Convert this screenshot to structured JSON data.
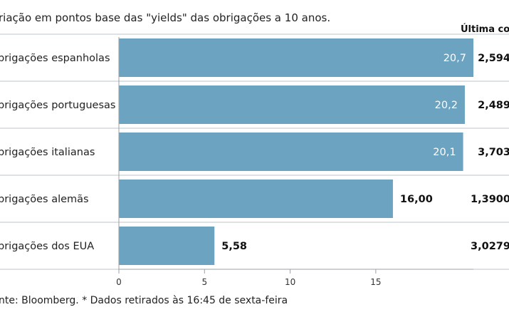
{
  "header": {
    "subtitle": "riação em pontos base das \"yields\" das obrigações a 10 anos.",
    "last_quote_label": "Última cotaç"
  },
  "footer": {
    "source": "nte: Bloomberg.  * Dados retirados às 16:45 de sexta-feira"
  },
  "colors": {
    "bar": "#6ca3c0",
    "axis": "#9aa0a6",
    "divider": "#bfc5ca"
  },
  "chart_data": {
    "type": "bar",
    "orientation": "horizontal",
    "categories": [
      "brigações espanholas",
      "brigações portuguesas",
      "brigações italianas",
      "brigações alemãs",
      "brigações dos EUA"
    ],
    "values": [
      20.7,
      20.2,
      20.1,
      16.0,
      5.58
    ],
    "value_labels": [
      "20,7",
      "20,2",
      "20,1",
      "16,00",
      "5,58"
    ],
    "last_quote": [
      "2,594",
      "2,489",
      "3,703",
      "1,3900",
      "3,0279"
    ],
    "xlim": [
      0,
      20.7
    ],
    "xticks": [
      0,
      5,
      10,
      15
    ],
    "xtick_labels": [
      "0",
      "5",
      "10",
      "15"
    ],
    "grid": false
  }
}
